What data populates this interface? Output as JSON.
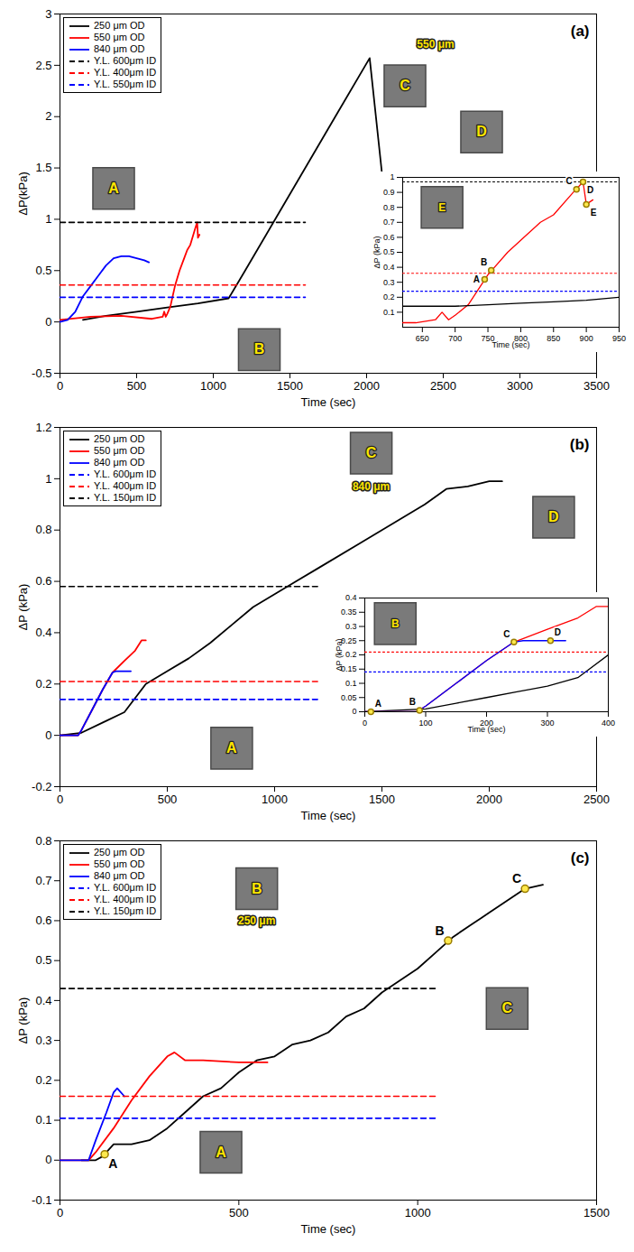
{
  "chart_data": [
    {
      "type": "line",
      "panel_label": "(a)",
      "xlabel": "Time (sec)",
      "ylabel": "ΔP(kPa)",
      "xlim": [
        0,
        3500
      ],
      "xticks": [
        0,
        500,
        1000,
        1500,
        2000,
        2500,
        3000,
        3500
      ],
      "ylim": [
        -0.5,
        3
      ],
      "yticks": [
        -0.5,
        0,
        0.5,
        1,
        1.5,
        2,
        2.5,
        3
      ],
      "legend": "top-left",
      "series": [
        {
          "name": "250 μm OD",
          "color": "#000000",
          "line_style": "solid",
          "x": [
            150,
            300,
            500,
            700,
            900,
            1100,
            1200,
            1400,
            1600,
            1800,
            2020,
            2100
          ],
          "values": [
            0.02,
            0.06,
            0.1,
            0.14,
            0.18,
            0.23,
            0.48,
            0.99,
            1.5,
            2.01,
            2.57,
            1.45
          ]
        },
        {
          "name": "550 μm OD",
          "color": "#ff0000",
          "line_style": "solid",
          "x": [
            0,
            200,
            400,
            600,
            670,
            680,
            690,
            700,
            720,
            750,
            780,
            810,
            830,
            850,
            880,
            895,
            900,
            910
          ],
          "values": [
            0.02,
            0.05,
            0.06,
            0.03,
            0.05,
            0.1,
            0.05,
            0.08,
            0.15,
            0.35,
            0.5,
            0.62,
            0.7,
            0.75,
            0.9,
            0.97,
            0.82,
            0.85
          ]
        },
        {
          "name": "840 μm OD",
          "color": "#0000ff",
          "line_style": "solid",
          "x": [
            0,
            50,
            100,
            150,
            200,
            250,
            300,
            350,
            400,
            450,
            500,
            550,
            580
          ],
          "values": [
            0,
            0.02,
            0.1,
            0.25,
            0.35,
            0.45,
            0.55,
            0.62,
            0.64,
            0.64,
            0.62,
            0.6,
            0.58
          ]
        },
        {
          "name": "Y.L. 600μm ID",
          "color": "#000000",
          "line_style": "dashed",
          "x": [
            0,
            1600
          ],
          "values": [
            0.97,
            0.97
          ]
        },
        {
          "name": "Y.L. 400μm ID",
          "color": "#ff0000",
          "line_style": "dashed",
          "x": [
            0,
            1600
          ],
          "values": [
            0.36,
            0.36
          ]
        },
        {
          "name": "Y.L. 550μm ID",
          "color": "#0000ff",
          "line_style": "dashed",
          "x": [
            0,
            1600
          ],
          "values": [
            0.24,
            0.24
          ]
        }
      ],
      "photo_labels": [
        {
          "text": "A",
          "x": 350,
          "y": 1.3
        },
        {
          "text": "B",
          "x": 1300,
          "y": -0.27
        },
        {
          "text": "C",
          "x": 2250,
          "y": 2.3
        },
        {
          "text": "D",
          "x": 2750,
          "y": 1.85
        }
      ],
      "scale_labels": [
        {
          "text": "550 μm",
          "x": 2450,
          "y": 2.7
        }
      ],
      "inset": {
        "type": "line",
        "xlabel": "Time (sec)",
        "ylabel": "ΔP (kPa)",
        "xlim": [
          620,
          950
        ],
        "xticks": [
          650,
          700,
          750,
          800,
          850,
          900,
          950
        ],
        "ylim": [
          0,
          1
        ],
        "yticks": [
          0.1,
          0.2,
          0.3,
          0.4,
          0.5,
          0.6,
          0.7,
          0.8,
          0.9,
          1
        ],
        "series": [
          {
            "color": "#ff0000",
            "line_style": "solid",
            "x": [
              620,
              640,
              670,
              680,
              690,
              700,
              720,
              750,
              780,
              810,
              830,
              850,
              880,
              895,
              900,
              910
            ],
            "values": [
              0.03,
              0.03,
              0.05,
              0.1,
              0.05,
              0.08,
              0.15,
              0.35,
              0.5,
              0.62,
              0.7,
              0.75,
              0.9,
              0.97,
              0.82,
              0.85
            ]
          },
          {
            "color": "#000000",
            "line_style": "solid",
            "x": [
              620,
              700,
              750,
              800,
              850,
              900,
              950
            ],
            "values": [
              0.14,
              0.14,
              0.15,
              0.16,
              0.17,
              0.18,
              0.2
            ]
          },
          {
            "color": "#000000",
            "line_style": "dotted",
            "x": [
              620,
              950
            ],
            "values": [
              0.97,
              0.97
            ]
          },
          {
            "color": "#ff0000",
            "line_style": "dotted",
            "x": [
              620,
              950
            ],
            "values": [
              0.36,
              0.36
            ]
          },
          {
            "color": "#0000ff",
            "line_style": "dotted",
            "x": [
              620,
              950
            ],
            "values": [
              0.24,
              0.24
            ]
          }
        ],
        "point_labels": [
          {
            "text": "A",
            "x": 745,
            "y": 0.32
          },
          {
            "text": "B",
            "x": 755,
            "y": 0.38
          },
          {
            "text": "C",
            "x": 885,
            "y": 0.92
          },
          {
            "text": "D",
            "x": 895,
            "y": 0.97
          },
          {
            "text": "E",
            "x": 900,
            "y": 0.82
          }
        ],
        "photo_labels": [
          {
            "text": "E",
            "x": 680,
            "y": 0.8
          }
        ]
      }
    },
    {
      "type": "line",
      "panel_label": "(b)",
      "xlabel": "Time (sec)",
      "ylabel": "ΔP (kPa)",
      "xlim": [
        0,
        2500
      ],
      "xticks": [
        0,
        500,
        1000,
        1500,
        2000,
        2500
      ],
      "ylim": [
        -0.2,
        1.2
      ],
      "yticks": [
        -0.2,
        0,
        0.2,
        0.4,
        0.6,
        0.8,
        1,
        1.2
      ],
      "legend": "top-left",
      "series": [
        {
          "name": "250 μm OD",
          "color": "#000000",
          "line_style": "solid",
          "x": [
            0,
            100,
            200,
            300,
            400,
            500,
            600,
            700,
            800,
            900,
            1000,
            1100,
            1200,
            1400,
            1600,
            1700,
            1800,
            1900,
            2000,
            2060
          ],
          "values": [
            0,
            0.01,
            0.05,
            0.09,
            0.2,
            0.25,
            0.3,
            0.36,
            0.43,
            0.5,
            0.55,
            0.6,
            0.65,
            0.75,
            0.85,
            0.9,
            0.96,
            0.97,
            0.99,
            0.99
          ]
        },
        {
          "name": "550 μm OD",
          "color": "#ff0000",
          "line_style": "solid",
          "x": [
            0,
            85,
            100,
            150,
            200,
            245,
            300,
            350,
            380,
            400
          ],
          "values": [
            0,
            0,
            0.02,
            0.1,
            0.18,
            0.245,
            0.29,
            0.33,
            0.37,
            0.37
          ]
        },
        {
          "name": "840 μm OD",
          "color": "#0000ff",
          "line_style": "solid",
          "x": [
            0,
            85,
            100,
            150,
            200,
            245,
            260,
            300,
            330
          ],
          "values": [
            0,
            0,
            0.02,
            0.1,
            0.18,
            0.245,
            0.25,
            0.25,
            0.25
          ]
        },
        {
          "name": "Y.L. 600μm ID",
          "color": "#0000ff",
          "line_style": "dashed",
          "x": [
            0,
            1200
          ],
          "values": [
            0.14,
            0.14
          ]
        },
        {
          "name": "Y.L. 400μm ID",
          "color": "#ff0000",
          "line_style": "dashed",
          "x": [
            0,
            1200
          ],
          "values": [
            0.21,
            0.21
          ]
        },
        {
          "name": "Y.L. 150μm ID",
          "color": "#000000",
          "line_style": "dashed",
          "x": [
            0,
            1200
          ],
          "values": [
            0.58,
            0.58
          ]
        }
      ],
      "photo_labels": [
        {
          "text": "A",
          "x": 800,
          "y": -0.05
        },
        {
          "text": "C",
          "x": 1450,
          "y": 1.1
        },
        {
          "text": "D",
          "x": 2300,
          "y": 0.85
        }
      ],
      "scale_labels": [
        {
          "text": "840 μm",
          "x": 1450,
          "y": 0.97
        }
      ],
      "inset": {
        "type": "line",
        "xlabel": "Time (sec)",
        "ylabel": "ΔP (kPa)",
        "xlim": [
          0,
          400
        ],
        "xticks": [
          0,
          100,
          200,
          300,
          400
        ],
        "ylim": [
          0,
          0.4
        ],
        "yticks": [
          0,
          0.05,
          0.1,
          0.15,
          0.2,
          0.25,
          0.3,
          0.35,
          0.4
        ],
        "series": [
          {
            "color": "#000000",
            "line_style": "solid",
            "x": [
              0,
              100,
              150,
              200,
              250,
              300,
              350,
              400
            ],
            "values": [
              0,
              0.01,
              0.03,
              0.05,
              0.07,
              0.09,
              0.12,
              0.2
            ]
          },
          {
            "color": "#ff0000",
            "line_style": "solid",
            "x": [
              0,
              85,
              100,
              150,
              200,
              245,
              300,
              350,
              380,
              400
            ],
            "values": [
              0,
              0,
              0.02,
              0.1,
              0.18,
              0.245,
              0.29,
              0.33,
              0.37,
              0.37
            ]
          },
          {
            "color": "#0000ff",
            "line_style": "solid",
            "x": [
              0,
              85,
              100,
              150,
              200,
              245,
              260,
              300,
              330
            ],
            "values": [
              0,
              0,
              0.02,
              0.1,
              0.18,
              0.245,
              0.25,
              0.25,
              0.25
            ]
          },
          {
            "color": "#ff0000",
            "line_style": "dotted",
            "x": [
              0,
              400
            ],
            "values": [
              0.21,
              0.21
            ]
          },
          {
            "color": "#0000ff",
            "line_style": "dotted",
            "x": [
              0,
              400
            ],
            "values": [
              0.14,
              0.14
            ]
          }
        ],
        "point_labels": [
          {
            "text": "A",
            "x": 10,
            "y": 0
          },
          {
            "text": "B",
            "x": 90,
            "y": 0.005
          },
          {
            "text": "C",
            "x": 245,
            "y": 0.245
          },
          {
            "text": "D",
            "x": 305,
            "y": 0.25
          }
        ],
        "photo_labels": [
          {
            "text": "B",
            "x": 50,
            "y": 0.31
          }
        ]
      }
    },
    {
      "type": "line",
      "panel_label": "(c)",
      "xlabel": "Time (sec)",
      "ylabel": "ΔP (kPa)",
      "xlim": [
        0,
        1500
      ],
      "xticks": [
        0,
        500,
        1000,
        1500
      ],
      "ylim": [
        -0.1,
        0.8
      ],
      "yticks": [
        -0.1,
        0,
        0.1,
        0.2,
        0.3,
        0.4,
        0.5,
        0.6,
        0.7,
        0.8
      ],
      "legend": "top-left",
      "series": [
        {
          "name": "250 μm OD",
          "color": "#000000",
          "line_style": "solid",
          "x": [
            60,
            100,
            120,
            150,
            200,
            250,
            300,
            350,
            400,
            450,
            500,
            550,
            600,
            650,
            700,
            750,
            800,
            850,
            900,
            950,
            1000,
            1050,
            1100,
            1150,
            1200,
            1250,
            1300,
            1350
          ],
          "values": [
            0,
            0,
            0.01,
            0.04,
            0.04,
            0.05,
            0.08,
            0.12,
            0.16,
            0.18,
            0.22,
            0.25,
            0.26,
            0.29,
            0.3,
            0.32,
            0.36,
            0.38,
            0.42,
            0.45,
            0.48,
            0.52,
            0.56,
            0.59,
            0.62,
            0.65,
            0.68,
            0.69
          ]
        },
        {
          "name": "550 μm OD",
          "color": "#ff0000",
          "line_style": "solid",
          "x": [
            0,
            80,
            100,
            150,
            200,
            250,
            300,
            320,
            350,
            400,
            500,
            580
          ],
          "values": [
            0,
            0,
            0.02,
            0.08,
            0.15,
            0.21,
            0.26,
            0.27,
            0.25,
            0.25,
            0.245,
            0.245
          ]
        },
        {
          "name": "840 μm OD",
          "color": "#0000ff",
          "line_style": "solid",
          "x": [
            0,
            80,
            100,
            130,
            150,
            160,
            180
          ],
          "values": [
            0,
            0,
            0.05,
            0.12,
            0.17,
            0.18,
            0.16
          ]
        },
        {
          "name": "Y.L. 600μm ID",
          "color": "#0000ff",
          "line_style": "dashed",
          "x": [
            0,
            1050
          ],
          "values": [
            0.105,
            0.105
          ]
        },
        {
          "name": "Y.L. 400μm ID",
          "color": "#ff0000",
          "line_style": "dashed",
          "x": [
            0,
            1050
          ],
          "values": [
            0.16,
            0.16
          ]
        },
        {
          "name": "Y.L. 150μm ID",
          "color": "#000000",
          "line_style": "dashed",
          "x": [
            0,
            1050
          ],
          "values": [
            0.43,
            0.43
          ]
        }
      ],
      "point_labels": [
        {
          "text": "A",
          "x": 125,
          "y": 0.015
        },
        {
          "text": "B",
          "x": 1085,
          "y": 0.55
        },
        {
          "text": "C",
          "x": 1300,
          "y": 0.68
        }
      ],
      "photo_labels": [
        {
          "text": "A",
          "x": 450,
          "y": 0.02
        },
        {
          "text": "B",
          "x": 550,
          "y": 0.68
        },
        {
          "text": "C",
          "x": 1250,
          "y": 0.38
        }
      ],
      "scale_labels": [
        {
          "text": "250 μm",
          "x": 550,
          "y": 0.6
        }
      ]
    }
  ]
}
